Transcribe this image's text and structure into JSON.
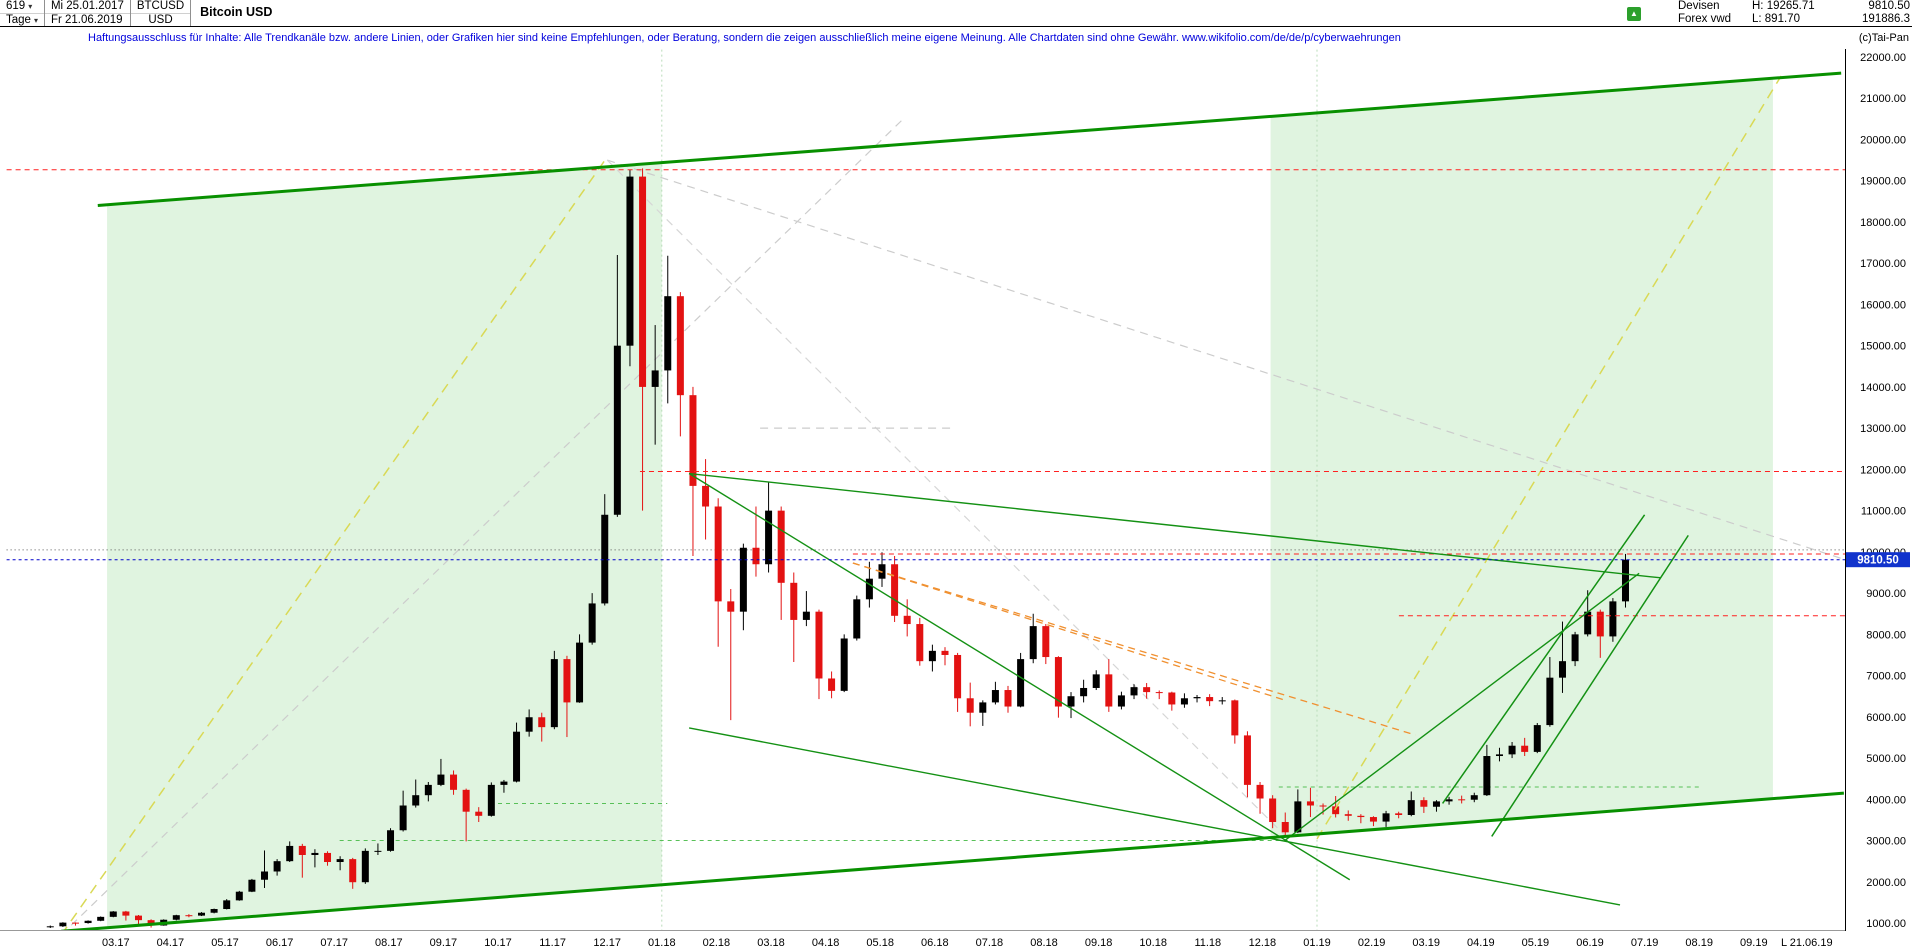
{
  "header": {
    "bars_count": "619",
    "start_date": "Mi 25.01.2017",
    "period": "Tage",
    "end_date": "Fr 21.06.2019",
    "symbol": "BTCUSD",
    "currency": "USD",
    "title": "Bitcoin USD",
    "exchange": "Devisen",
    "source": "Forex vwd",
    "high_label": "H: 19265.71",
    "low_label": "L: 891.70",
    "last_price": "9810.50",
    "turnover": "191886.3",
    "copyright": "(c)Tai-Pan"
  },
  "icons": {
    "green_arrow": "▲"
  },
  "disclaimer": "Haftungsausschluss für Inhalte: Alle Trendkanäle bzw. andere Linien, oder Grafiken hier sind keine Empfehlungen, oder Beratung, sondern die zeigen ausschließlich meine eigene Meinung. Alle Chartdaten sind ohne Gewähr.  www.wikifolio.com/de/de/p/cyberwaehrungen",
  "axis": {
    "price_ticks": [
      "22000.00",
      "21000.00",
      "20000.00",
      "19000.00",
      "18000.00",
      "17000.00",
      "16000.00",
      "15000.00",
      "14000.00",
      "13000.00",
      "12000.00",
      "11000.00",
      "10000.00",
      "9000.00",
      "8000.00",
      "7000.00",
      "6000.00",
      "5000.00",
      "4000.00",
      "3000.00",
      "2000.00",
      "1000.00"
    ],
    "month_labels": [
      "03.17",
      "04.17",
      "05.17",
      "06.17",
      "07.17",
      "08.17",
      "09.17",
      "10.17",
      "11.17",
      "12.17",
      "01.18",
      "02.18",
      "03.18",
      "04.18",
      "05.18",
      "06.18",
      "07.18",
      "08.18",
      "09.18",
      "10.18",
      "11.18",
      "12.18",
      "01.19",
      "02.19",
      "03.19",
      "04.19",
      "05.19",
      "06.19",
      "07.19",
      "08.19",
      "09.19"
    ],
    "last_bar_label": "L  21.06.19",
    "current_price_tag": "9810.50"
  },
  "chart_data": {
    "type": "candlestick",
    "title": "Bitcoin USD",
    "symbol": "BTCUSD",
    "currency": "USD",
    "interval_note": "daily chart of 619 bars, values read from screen and approximated as weekly candles",
    "date_first": "25.01.2017",
    "date_last": "21.06.2019",
    "high_all_time": 19265.71,
    "low_all_time": 891.7,
    "last_price": 9810.5,
    "y_axis": {
      "min": 1000,
      "max": 22000,
      "step": 1000
    },
    "t0": 0.8,
    "dt": 0.2308,
    "ohlc": [
      [
        900,
        940,
        880,
        921
      ],
      [
        921,
        1020,
        905,
        1010
      ],
      [
        1010,
        1015,
        938,
        1000
      ],
      [
        1000,
        1065,
        985,
        1055
      ],
      [
        1055,
        1160,
        1045,
        1150
      ],
      [
        1150,
        1290,
        1140,
        1280
      ],
      [
        1280,
        1295,
        1060,
        1180
      ],
      [
        1180,
        1195,
        950,
        1070
      ],
      [
        1070,
        1090,
        890,
        940
      ],
      [
        940,
        1090,
        935,
        1080
      ],
      [
        1080,
        1200,
        1065,
        1190
      ],
      [
        1190,
        1215,
        1140,
        1180
      ],
      [
        1180,
        1265,
        1170,
        1250
      ],
      [
        1250,
        1350,
        1235,
        1340
      ],
      [
        1340,
        1580,
        1330,
        1550
      ],
      [
        1550,
        1780,
        1540,
        1760
      ],
      [
        1760,
        2070,
        1750,
        2050
      ],
      [
        2050,
        2760,
        1850,
        2250
      ],
      [
        2250,
        2550,
        2150,
        2500
      ],
      [
        2500,
        2980,
        2480,
        2870
      ],
      [
        2870,
        2920,
        2100,
        2650
      ],
      [
        2650,
        2790,
        2350,
        2700
      ],
      [
        2700,
        2740,
        2390,
        2480
      ],
      [
        2480,
        2620,
        2280,
        2550
      ],
      [
        2550,
        2580,
        1830,
        1990
      ],
      [
        1990,
        2810,
        1950,
        2750
      ],
      [
        2750,
        2930,
        2650,
        2750
      ],
      [
        2750,
        3300,
        2730,
        3250
      ],
      [
        3250,
        4210,
        3220,
        3850
      ],
      [
        3850,
        4480,
        3800,
        4100
      ],
      [
        4100,
        4420,
        3950,
        4350
      ],
      [
        4350,
        4980,
        4320,
        4600
      ],
      [
        4600,
        4700,
        4110,
        4230
      ],
      [
        4230,
        4260,
        2980,
        3700
      ],
      [
        3700,
        3810,
        3450,
        3600
      ],
      [
        3600,
        4410,
        3580,
        4350
      ],
      [
        4350,
        4470,
        4160,
        4430
      ],
      [
        4430,
        5860,
        4410,
        5640
      ],
      [
        5640,
        6180,
        5520,
        5990
      ],
      [
        5990,
        6100,
        5400,
        5750
      ],
      [
        5750,
        7600,
        5700,
        7400
      ],
      [
        7400,
        7480,
        5510,
        6350
      ],
      [
        6350,
        8000,
        6340,
        7800
      ],
      [
        7800,
        9000,
        7750,
        8750
      ],
      [
        8750,
        11400,
        8700,
        10900
      ],
      [
        10900,
        17200,
        10850,
        15000
      ],
      [
        15000,
        19265.71,
        14500,
        19100
      ],
      [
        19100,
        19300,
        11000,
        14000
      ],
      [
        14000,
        15500,
        12600,
        14400
      ],
      [
        14400,
        17180,
        13600,
        16200
      ],
      [
        16200,
        16300,
        12800,
        13800
      ],
      [
        13800,
        14000,
        9900,
        11600
      ],
      [
        11600,
        12250,
        10300,
        11100
      ],
      [
        11100,
        11300,
        7700,
        8800
      ],
      [
        8800,
        9100,
        5920,
        8550
      ],
      [
        8550,
        10200,
        8100,
        10100
      ],
      [
        10100,
        11100,
        9400,
        9700
      ],
      [
        9700,
        11700,
        9500,
        11000
      ],
      [
        11000,
        11100,
        8350,
        9250
      ],
      [
        9250,
        9500,
        7330,
        8350
      ],
      [
        8350,
        9050,
        8200,
        8550
      ],
      [
        8550,
        8600,
        6430,
        6930
      ],
      [
        6930,
        7100,
        6450,
        6630
      ],
      [
        6630,
        8000,
        6600,
        7900
      ],
      [
        7900,
        8940,
        7850,
        8850
      ],
      [
        8850,
        9760,
        8650,
        9350
      ],
      [
        9350,
        9990,
        9150,
        9700
      ],
      [
        9700,
        9900,
        8300,
        8450
      ],
      [
        8450,
        8850,
        7950,
        8250
      ],
      [
        8250,
        8400,
        7240,
        7350
      ],
      [
        7350,
        7750,
        7100,
        7600
      ],
      [
        7600,
        7690,
        7250,
        7500
      ],
      [
        7500,
        7550,
        6120,
        6450
      ],
      [
        6450,
        6830,
        5770,
        6100
      ],
      [
        6100,
        6400,
        5780,
        6350
      ],
      [
        6350,
        6850,
        6300,
        6650
      ],
      [
        6650,
        6750,
        6100,
        6250
      ],
      [
        6250,
        7550,
        6230,
        7400
      ],
      [
        7400,
        8500,
        7300,
        8200
      ],
      [
        8200,
        8250,
        7280,
        7450
      ],
      [
        7450,
        7470,
        5980,
        6250
      ],
      [
        6250,
        6600,
        5970,
        6500
      ],
      [
        6500,
        6900,
        6350,
        6700
      ],
      [
        6700,
        7130,
        6650,
        7030
      ],
      [
        7030,
        7400,
        6120,
        6250
      ],
      [
        6250,
        6610,
        6180,
        6520
      ],
      [
        6520,
        6790,
        6430,
        6720
      ],
      [
        6720,
        6820,
        6440,
        6600
      ],
      [
        6600,
        6640,
        6430,
        6590
      ],
      [
        6590,
        6610,
        6150,
        6300
      ],
      [
        6300,
        6570,
        6220,
        6450
      ],
      [
        6450,
        6530,
        6350,
        6480
      ],
      [
        6480,
        6550,
        6260,
        6380
      ],
      [
        6380,
        6480,
        6300,
        6400
      ],
      [
        6400,
        6420,
        5350,
        5550
      ],
      [
        5550,
        5650,
        4050,
        4350
      ],
      [
        4350,
        4420,
        3650,
        4020
      ],
      [
        4020,
        4100,
        3300,
        3450
      ],
      [
        3450,
        3680,
        3130,
        3200
      ],
      [
        3200,
        4240,
        3180,
        3950
      ],
      [
        3950,
        4280,
        3570,
        3850
      ],
      [
        3850,
        3900,
        3630,
        3830
      ],
      [
        3830,
        4080,
        3560,
        3640
      ],
      [
        3640,
        3730,
        3480,
        3600
      ],
      [
        3600,
        3640,
        3420,
        3570
      ],
      [
        3570,
        3590,
        3350,
        3460
      ],
      [
        3460,
        3720,
        3330,
        3660
      ],
      [
        3660,
        3700,
        3540,
        3620
      ],
      [
        3620,
        4190,
        3590,
        3980
      ],
      [
        3980,
        4050,
        3670,
        3820
      ],
      [
        3820,
        3980,
        3700,
        3950
      ],
      [
        3950,
        4060,
        3870,
        4000
      ],
      [
        4000,
        4090,
        3900,
        3990
      ],
      [
        3990,
        4160,
        3930,
        4100
      ],
      [
        4100,
        5320,
        4080,
        5050
      ],
      [
        5050,
        5250,
        4920,
        5090
      ],
      [
        5090,
        5390,
        5000,
        5300
      ],
      [
        5300,
        5490,
        5050,
        5150
      ],
      [
        5150,
        5850,
        5120,
        5800
      ],
      [
        5800,
        7450,
        5760,
        6950
      ],
      [
        6950,
        8310,
        6580,
        7350
      ],
      [
        7350,
        8060,
        7230,
        8000
      ],
      [
        8000,
        9070,
        7950,
        8550
      ],
      [
        8550,
        8600,
        7430,
        7950
      ],
      [
        7950,
        8880,
        7820,
        8800
      ],
      [
        8800,
        9950,
        8650,
        9810.5
      ]
    ]
  },
  "annotations": {
    "bands": [
      {
        "t1": 1.84,
        "t2": 12.0,
        "fill": "#e0f4e0"
      },
      {
        "t1": 23.15,
        "t2": 32.35,
        "fill": "#e0f4e0"
      }
    ],
    "lines_below": [
      {
        "name": "gray-trend-ascending",
        "color": "#cccccc",
        "width": 1.2,
        "dash": "8,6",
        "points": [
          [
            1.0,
            710
          ],
          [
            16.4,
            20470
          ]
        ]
      },
      {
        "name": "gray-trend-peak-right",
        "color": "#cccccc",
        "width": 1.2,
        "dash": "8,6",
        "points": [
          [
            11.0,
            19500
          ],
          [
            33.7,
            9800
          ]
        ]
      },
      {
        "name": "gray-trend-peak-low",
        "color": "#d6d6d6",
        "width": 1.2,
        "dash": "8,6",
        "points": [
          [
            11.0,
            19500
          ],
          [
            23.5,
            3010
          ]
        ]
      },
      {
        "name": "gray-level-13000",
        "color": "#cccccc",
        "width": 1.2,
        "dash": "8,6",
        "points": [
          [
            13.8,
            13000
          ],
          [
            17.3,
            13000
          ]
        ]
      },
      {
        "name": "year-line-2018",
        "color": "#b9dcb9",
        "width": 1,
        "dash": "2,3",
        "points": [
          [
            12,
            22300
          ],
          [
            12,
            300
          ]
        ]
      },
      {
        "name": "year-line-2019",
        "color": "#b9dcb9",
        "width": 1,
        "dash": "2,3",
        "points": [
          [
            24,
            22300
          ],
          [
            24,
            300
          ]
        ]
      },
      {
        "name": "support-3000-dashed",
        "color": "#58c058",
        "width": 1,
        "dash": "4,4",
        "points": [
          [
            6.1,
            3000
          ],
          [
            23.5,
            3000
          ]
        ]
      },
      {
        "name": "support-3900-dashed",
        "color": "#58c058",
        "width": 1,
        "dash": "4,4",
        "points": [
          [
            9.0,
            3900
          ],
          [
            12.1,
            3900
          ]
        ]
      },
      {
        "name": "support-4300-dashed",
        "color": "#58c058",
        "width": 1,
        "dash": "4,4",
        "points": [
          [
            23.3,
            4300
          ],
          [
            31.0,
            4300
          ]
        ]
      },
      {
        "name": "level-10000-dotted",
        "color": "#555555",
        "width": 1,
        "dash": "1,3",
        "points": [
          [
            0,
            10050
          ],
          [
            33.7,
            10050
          ]
        ]
      }
    ],
    "lines_above": [
      {
        "name": "yellow-trend-left",
        "color": "#d9d955",
        "width": 1.5,
        "dash": "10,7",
        "points": [
          [
            1.0,
            710
          ],
          [
            10.96,
            19500
          ]
        ]
      },
      {
        "name": "yellow-trend-right",
        "color": "#d9d955",
        "width": 1.5,
        "dash": "10,7",
        "points": [
          [
            24.0,
            3040
          ],
          [
            32.5,
            21540
          ]
        ]
      },
      {
        "name": "orange-trend-1",
        "color": "#f09030",
        "width": 1.3,
        "dash": "7,5",
        "points": [
          [
            15.5,
            9730
          ],
          [
            25.8,
            5560
          ]
        ]
      },
      {
        "name": "orange-trend-2",
        "color": "#f09030",
        "width": 1.3,
        "dash": "7,5",
        "points": [
          [
            15.5,
            9730
          ],
          [
            23.4,
            6410
          ]
        ]
      },
      {
        "name": "resistance-ath",
        "color": "#ff2020",
        "width": 1,
        "dash": "5,4",
        "points": [
          [
            0,
            19265.71
          ],
          [
            33.7,
            19265.71
          ]
        ]
      },
      {
        "name": "resistance-12000",
        "color": "#ff2020",
        "width": 1,
        "dash": "5,4",
        "points": [
          [
            11.6,
            11950
          ],
          [
            33.7,
            11950
          ]
        ]
      },
      {
        "name": "resistance-9950",
        "color": "#ff2020",
        "width": 1,
        "dash": "5,4",
        "points": [
          [
            15.5,
            9950
          ],
          [
            33.7,
            9950
          ]
        ]
      },
      {
        "name": "resistance-8450",
        "color": "#ff2020",
        "width": 1,
        "dash": "5,4",
        "points": [
          [
            25.5,
            8450
          ],
          [
            33.7,
            8450
          ]
        ]
      },
      {
        "name": "wedge-upper",
        "color": "#149114",
        "width": 1.4,
        "dash": null,
        "points": [
          [
            12.5,
            11900
          ],
          [
            24.6,
            2050
          ]
        ]
      },
      {
        "name": "trend-feb18-to-now",
        "color": "#149114",
        "width": 1.4,
        "dash": null,
        "points": [
          [
            12.5,
            11900
          ],
          [
            30.3,
            9370
          ]
        ]
      },
      {
        "name": "wedge-lower",
        "color": "#149114",
        "width": 1.4,
        "dash": null,
        "points": [
          [
            12.5,
            5730
          ],
          [
            29.55,
            1440
          ]
        ]
      },
      {
        "name": "support-2019",
        "color": "#149114",
        "width": 1.4,
        "dash": null,
        "points": [
          [
            23.4,
            2990
          ],
          [
            29.9,
            9480
          ]
        ]
      },
      {
        "name": "rally-channel-1",
        "color": "#149114",
        "width": 1.5,
        "dash": null,
        "points": [
          [
            26.3,
            3900
          ],
          [
            30.0,
            10900
          ]
        ]
      },
      {
        "name": "rally-channel-2",
        "color": "#149114",
        "width": 1.5,
        "dash": null,
        "points": [
          [
            27.2,
            3100
          ],
          [
            30.8,
            10400
          ]
        ]
      },
      {
        "name": "channel-upper",
        "color": "#089000",
        "width": 3,
        "dash": null,
        "points": [
          [
            1.67,
            18400
          ],
          [
            33.6,
            21610
          ]
        ]
      },
      {
        "name": "channel-lower",
        "color": "#089000",
        "width": 3,
        "dash": null,
        "points": [
          [
            1.0,
            800
          ],
          [
            33.65,
            4150
          ]
        ]
      },
      {
        "name": "current-price-line",
        "color": "#0000cc",
        "width": 1,
        "dash": "3,3",
        "points": [
          [
            0,
            9810.5
          ],
          [
            33.7,
            9810.5
          ]
        ]
      }
    ]
  }
}
